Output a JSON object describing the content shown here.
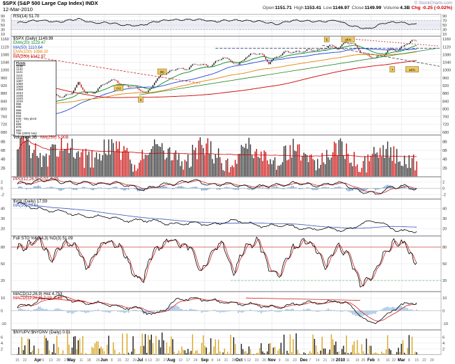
{
  "header": {
    "symbol": "$SPX (S&P 500 Large Cap Index) INDX",
    "date": "12-Mar-2010",
    "copyright": "© StockCharts.com",
    "quote": {
      "open_label": "Open",
      "open": "1151.71",
      "high_label": "High",
      "high": "1153.41",
      "low_label": "Low",
      "low": "1146.97",
      "close_label": "Close",
      "close": "1149.99",
      "volume_label": "Volume",
      "volume": "4.3B",
      "chg_label": "Chg",
      "chg": "-0.25 (-0.02%)"
    }
  },
  "colors": {
    "candle_up": "#111111",
    "candle_down": "#cc1111",
    "grid": "#e3e3e8",
    "month_grid": "#dcdce2",
    "accent_gold": "#edc967"
  },
  "xaxis": {
    "ticks": [
      [
        0,
        "15"
      ],
      [
        1,
        "22"
      ],
      [
        2.7,
        "Apr",
        1
      ],
      [
        3.4,
        "6"
      ],
      [
        4.4,
        "13"
      ],
      [
        5.4,
        "20"
      ],
      [
        6.4,
        "27"
      ],
      [
        7.1,
        "May",
        1
      ],
      [
        8.4,
        "11"
      ],
      [
        9.4,
        "18"
      ],
      [
        10.6,
        "26"
      ],
      [
        11.4,
        "Jun",
        1
      ],
      [
        12.4,
        "8"
      ],
      [
        13.4,
        "15"
      ],
      [
        14.4,
        "22"
      ],
      [
        15.4,
        "29"
      ],
      [
        16.1,
        "Jul",
        1
      ],
      [
        16.9,
        "6"
      ],
      [
        17.4,
        "13"
      ],
      [
        18.4,
        "20"
      ],
      [
        19.4,
        "27"
      ],
      [
        20.2,
        "Aug",
        1
      ],
      [
        21.4,
        "10"
      ],
      [
        22.4,
        "17"
      ],
      [
        23.4,
        "24"
      ],
      [
        24.6,
        "Sep",
        1
      ],
      [
        25.6,
        "8"
      ],
      [
        26.4,
        "14"
      ],
      [
        27.4,
        "21"
      ],
      [
        28.4,
        "28"
      ],
      [
        29.1,
        "Oct",
        1
      ],
      [
        29.9,
        "5"
      ],
      [
        30.4,
        "12"
      ],
      [
        31.4,
        "19"
      ],
      [
        32.4,
        "26"
      ],
      [
        33.4,
        "Nov",
        1
      ],
      [
        34.4,
        "9"
      ],
      [
        35.4,
        "16"
      ],
      [
        36.4,
        "23"
      ],
      [
        37.6,
        "Dec",
        1
      ],
      [
        38.4,
        "7"
      ],
      [
        39.4,
        "14"
      ],
      [
        40.4,
        "21"
      ],
      [
        41.4,
        "28"
      ],
      [
        42.4,
        "2010",
        1
      ],
      [
        43.4,
        "11"
      ],
      [
        44.6,
        "19"
      ],
      [
        45.4,
        "25"
      ],
      [
        46.4,
        "Feb",
        1
      ],
      [
        47.4,
        "8"
      ],
      [
        48.6,
        "16"
      ],
      [
        49.4,
        "22"
      ],
      [
        50.4,
        "Mar",
        1
      ],
      [
        51.4,
        "8"
      ],
      [
        52.4,
        "15"
      ],
      [
        53.4,
        "22"
      ],
      [
        54.4,
        "29"
      ]
    ]
  },
  "chart_data": [
    {
      "id": "rsi",
      "type": "line",
      "legend": [
        {
          "text": "RSI(14) 51.70",
          "color": "#000000"
        }
      ],
      "ylim": [
        0,
        100
      ],
      "ticks": [
        90,
        70,
        50,
        30,
        10
      ],
      "band": [
        30,
        70
      ],
      "hlines": [
        {
          "y": 70,
          "color": "#9999bb",
          "dash": "2,2"
        },
        {
          "y": 50,
          "color": "#bbbbcc",
          "dash": "1,2"
        },
        {
          "y": 30,
          "color": "#9999bb",
          "dash": "2,2"
        }
      ],
      "anchors": {
        "x": [
          0,
          2,
          5,
          8,
          10,
          13,
          16,
          18,
          22,
          26,
          30,
          32,
          34,
          36,
          38,
          40,
          42,
          44,
          46,
          48,
          50,
          52
        ],
        "y": [
          58,
          72,
          65,
          76,
          62,
          56,
          44,
          66,
          76,
          68,
          72,
          64,
          55,
          68,
          71,
          63,
          73,
          42,
          34,
          56,
          66,
          51.7
        ]
      }
    },
    {
      "id": "price",
      "type": "candles",
      "legend": [
        {
          "text": "$SPX (Daily) 1149.99",
          "color": "#000000"
        },
        {
          "text": "EMA(20) 1123.47",
          "color": "#008822"
        },
        {
          "text": "MA(50) 1110.64",
          "color": "#2244cc"
        },
        {
          "text": "EMA(100) 1088.20",
          "color": "#e08800"
        },
        {
          "text": "MA(200) 1042.97",
          "color": "#cc0000"
        }
      ],
      "ylim": [
        665,
        1175
      ],
      "ticks": [
        1160,
        1120,
        1080,
        1040,
        1000,
        960,
        920,
        880,
        840,
        800,
        760,
        720,
        680
      ],
      "weekly_close": [
        756,
        768,
        816,
        842,
        857,
        870,
        866,
        877,
        929,
        883,
        887,
        919,
        940,
        946,
        921,
        919,
        896,
        879,
        940,
        979,
        987,
        1010,
        1004,
        1026,
        1029,
        1016,
        1043,
        1068,
        1044,
        1025,
        1071,
        1088,
        1080,
        1036,
        1069,
        1093,
        1091,
        1091,
        1106,
        1106,
        1102,
        1126,
        1115,
        1145,
        1136,
        1092,
        1074,
        1066,
        1075,
        1109,
        1104,
        1139,
        1150
      ],
      "pre_anchors": {
        "x": [
          -42,
          -36,
          -30,
          -26,
          -22,
          -18,
          -14,
          -10,
          -6,
          -3,
          -1,
          0
        ],
        "y": [
          1310,
          1270,
          1160,
          880,
          900,
          950,
          870,
          850,
          820,
          690,
          730,
          756
        ]
      },
      "overlays": [
        {
          "name": "EMA(20)",
          "type": "ema",
          "period": 20,
          "color": "#008822"
        },
        {
          "name": "MA(50)",
          "type": "sma",
          "period": 50,
          "color": "#2244cc"
        },
        {
          "name": "EMA(100)",
          "type": "ema",
          "period": 100,
          "color": "#e08800"
        },
        {
          "name": "MA(200)",
          "type": "sma",
          "period": 200,
          "color": "#cc0000"
        }
      ],
      "trendlines": [
        {
          "x1": -0.5,
          "y1": 1085,
          "x2": 24,
          "y2": 932,
          "color": "#cc2222",
          "dash": "3,2"
        },
        {
          "x1": 16,
          "y1": 872,
          "x2": 55,
          "y2": 1112,
          "color": "#228822"
        },
        {
          "x1": 26,
          "y1": 1113,
          "x2": 55.4,
          "y2": 1113,
          "color": "#334488",
          "dash": "4,2"
        },
        {
          "x1": 40,
          "y1": 1128,
          "x2": 55.4,
          "y2": 1020,
          "color": "#444444",
          "dash": "4,2"
        },
        {
          "x1": 43,
          "y1": 1163,
          "x2": 55.4,
          "y2": 1124,
          "color": "#cc2222",
          "dash": "2,2"
        }
      ],
      "annotations": [
        {
          "w": 13.3,
          "p": 908,
          "t": "(A)"
        },
        {
          "w": 16.2,
          "p": 848,
          "t": "2"
        },
        {
          "w": 19.0,
          "p": 992,
          "t": "(B)"
        },
        {
          "w": 40.6,
          "p": 1160,
          "t": "5"
        },
        {
          "w": 43.4,
          "p": 1160,
          "t": "alt b"
        },
        {
          "w": 49.2,
          "p": 1004,
          "t": "?"
        },
        {
          "w": 51.8,
          "p": 1004,
          "t": "alt b"
        }
      ],
      "pivot_box": {
        "title": "Pivots",
        "lines": [
          "1148",
          "1133",
          "1121",
          "1110",
          "1101",
          "1087",
          "1080",
          "1066",
          "1059",
          "1044",
          "1035",
          "1020",
          "1010",
          "996",
          "985",
          "965",
          "956",
          "944",
          "935 - key pivot",
          "917",
          "899",
          "878",
          "850",
          "768 (2002 low)"
        ]
      }
    },
    {
      "id": "volume",
      "type": "volume",
      "legend": [
        {
          "text": "Volume 4.3B",
          "color": "#000000"
        },
        {
          "text": "MA(250) 5.90B",
          "color": "#cc0000"
        }
      ],
      "ylim": [
        0,
        9.5
      ],
      "ticks": [
        8,
        6,
        4,
        2
      ],
      "tick_suffix": "B"
    },
    {
      "id": "ppo",
      "type": "osc",
      "legend": [
        {
          "text": "PPO(12,26,9) 0.02, 0.25",
          "color": "#aa1111"
        }
      ],
      "ylim": [
        -3.4,
        3.6
      ],
      "ticks": [
        2,
        0,
        -2
      ],
      "zero": true,
      "hist_color": "#6699cc",
      "anchors": {
        "x": [
          0,
          3,
          6,
          9,
          12,
          15,
          17,
          20,
          23,
          26,
          29,
          32,
          34,
          37,
          40,
          43,
          45,
          47,
          49,
          52
        ],
        "y": [
          1.2,
          2.6,
          2.2,
          1.4,
          1.8,
          0.6,
          -0.4,
          1.6,
          2.2,
          1.2,
          1.0,
          0.2,
          1.2,
          1.4,
          1.0,
          1.6,
          -1.2,
          -2.0,
          0.6,
          0.0
        ]
      }
    },
    {
      "id": "vix",
      "type": "line2",
      "legend": [
        {
          "text": "$VIX (Daily) 17.59",
          "color": "#000000"
        },
        {
          "text": "MA(50) 20.61",
          "color": "#3355bb"
        }
      ],
      "ylim": [
        13,
        49
      ],
      "ticks": [
        40,
        30,
        20
      ],
      "anchors": {
        "x": [
          0,
          2,
          4,
          7,
          10,
          13,
          16,
          19,
          22,
          25,
          28,
          31,
          34,
          37,
          40,
          43,
          45,
          47,
          49,
          51,
          52
        ],
        "y": [
          44,
          42,
          38,
          35,
          32,
          30,
          28,
          26,
          25,
          24,
          28,
          24,
          23,
          21,
          20,
          18,
          25,
          27,
          21,
          18,
          17.6
        ]
      }
    },
    {
      "id": "stoch",
      "type": "stoch",
      "legend": [
        {
          "text": "Full STO %K(14,3) %D(3) 51.09",
          "color": "#000000"
        }
      ],
      "ylim": [
        0,
        100
      ],
      "ticks": [
        80,
        50,
        20
      ],
      "hlines": [
        {
          "y": 80,
          "color": "#cc4444",
          "w": 0.8
        },
        {
          "y": 20,
          "color": "#22aa44",
          "dash": "3,2",
          "x1": 28
        }
      ],
      "anchors": {
        "x": [
          0,
          1.5,
          3,
          4.5,
          6,
          7.5,
          9,
          10.5,
          12,
          13.5,
          15,
          16.5,
          18,
          19.5,
          21,
          22.5,
          24,
          25.5,
          27,
          28.5,
          30,
          31.5,
          33,
          34.5,
          36,
          37.5,
          39,
          40.5,
          42,
          43.5,
          45,
          46.5,
          48,
          49.5,
          51,
          52
        ],
        "y": [
          75,
          88,
          92,
          60,
          85,
          90,
          40,
          80,
          88,
          85,
          35,
          20,
          75,
          90,
          88,
          82,
          35,
          70,
          88,
          30,
          85,
          90,
          45,
          25,
          80,
          88,
          85,
          40,
          88,
          60,
          15,
          20,
          70,
          85,
          90,
          51
        ]
      }
    },
    {
      "id": "macd",
      "type": "osc",
      "legend": [
        {
          "text": "MACD(12,26,9) Hist 4.753",
          "color": "#000000"
        },
        {
          "text": "MACD(12,26,9) 7.19, 2.44",
          "color": "#cc0000"
        }
      ],
      "ylim": [
        -15,
        15
      ],
      "ticks": [
        10,
        0,
        -10
      ],
      "zero": true,
      "hist_color": "#a9c7e4",
      "trendlines": [
        {
          "x1": 0.5,
          "y1": 11.5,
          "x2": 9,
          "y2": 7,
          "color": "#cc2222"
        },
        {
          "x1": 30,
          "y1": 10,
          "x2": 45,
          "y2": 8.2,
          "color": "#cc2222"
        }
      ],
      "anchors": {
        "x": [
          0,
          3,
          6,
          9,
          12,
          15,
          18,
          21,
          24,
          27,
          30,
          33,
          36,
          39,
          42,
          44,
          46,
          48,
          50,
          52
        ],
        "y": [
          2,
          9,
          11,
          6,
          5,
          2,
          -3,
          8,
          10,
          6,
          6,
          2,
          5,
          6,
          8,
          2,
          -9,
          -7,
          4,
          7.2
        ]
      }
    },
    {
      "id": "ratio",
      "type": "bars",
      "legend": [
        {
          "text": "$NYUPV:$NYDNV (Daily) 0.91",
          "color": "#000000"
        }
      ],
      "ylim": [
        0,
        8.4
      ],
      "ticks": [
        6,
        4,
        2
      ],
      "bar_colors": [
        "#1a1a1a",
        "#d9a620"
      ],
      "last": 0.91
    }
  ]
}
